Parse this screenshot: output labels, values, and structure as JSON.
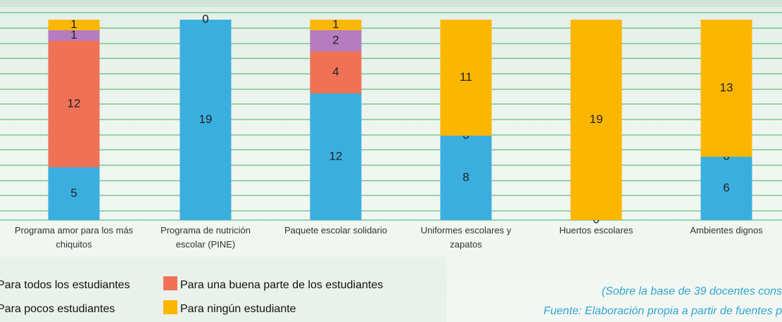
{
  "chart_data": {
    "type": "stacked_bar",
    "categories": [
      "Programa amor para los más chiquitos",
      "Programa de nutrición escolar (PINE)",
      "Paquete escolar solidario",
      "Uniformes escolares y zapatos",
      "Huertos escolares",
      "Ambientes dignos"
    ],
    "series": [
      {
        "name": "Para todos los estudiantes",
        "color": "#3aafdf",
        "values": [
          5,
          19,
          12,
          8,
          0,
          6
        ]
      },
      {
        "name": "Para una buena parte de los estudiantes",
        "color": "#ef7256",
        "values": [
          12,
          null,
          4,
          0,
          null,
          0
        ]
      },
      {
        "name": "Para pocos estudiantes",
        "color": "#b57cbf",
        "values": [
          1,
          null,
          2,
          null,
          null,
          null
        ]
      },
      {
        "name": "Para ningún estudiante",
        "color": "#fbb600",
        "values": [
          1,
          0,
          1,
          11,
          19,
          13
        ]
      }
    ],
    "ylim": [
      0,
      20
    ],
    "notes": [
      "(Sobre la base de 39 docentes cons",
      "Fuente: Elaboración propia a partir de fuentes p"
    ]
  }
}
